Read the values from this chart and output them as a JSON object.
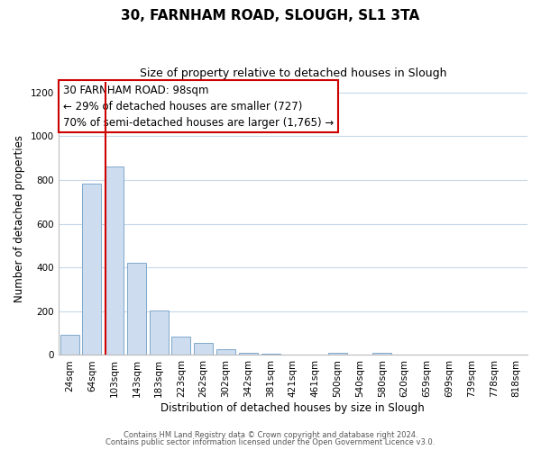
{
  "title": "30, FARNHAM ROAD, SLOUGH, SL1 3TA",
  "subtitle": "Size of property relative to detached houses in Slough",
  "xlabel": "Distribution of detached houses by size in Slough",
  "ylabel": "Number of detached properties",
  "bar_labels": [
    "24sqm",
    "64sqm",
    "103sqm",
    "143sqm",
    "183sqm",
    "223sqm",
    "262sqm",
    "302sqm",
    "342sqm",
    "381sqm",
    "421sqm",
    "461sqm",
    "500sqm",
    "540sqm",
    "580sqm",
    "620sqm",
    "659sqm",
    "699sqm",
    "739sqm",
    "778sqm",
    "818sqm"
  ],
  "bar_values": [
    93,
    785,
    862,
    420,
    205,
    85,
    55,
    25,
    10,
    5,
    0,
    0,
    10,
    0,
    10,
    0,
    0,
    0,
    0,
    0,
    0
  ],
  "bar_color": "#cddcee",
  "bar_edge_color": "#7fa8cc",
  "vline_color": "#cc0000",
  "vline_x": 1.62,
  "annotation_line1": "30 FARNHAM ROAD: 98sqm",
  "annotation_line2": "← 29% of detached houses are smaller (727)",
  "annotation_line3": "70% of semi-detached houses are larger (1,765) →",
  "annotation_box_color": "#ffffff",
  "annotation_box_edge": "#cc0000",
  "ylim": [
    0,
    1250
  ],
  "yticks": [
    0,
    200,
    400,
    600,
    800,
    1000,
    1200
  ],
  "footer1": "Contains HM Land Registry data © Crown copyright and database right 2024.",
  "footer2": "Contains public sector information licensed under the Open Government Licence v3.0.",
  "bg_color": "#ffffff",
  "grid_color": "#c8d8e8",
  "title_fontsize": 11,
  "subtitle_fontsize": 9,
  "label_fontsize": 8.5,
  "tick_fontsize": 7.5,
  "annotation_fontsize": 8.5,
  "footer_fontsize": 6
}
